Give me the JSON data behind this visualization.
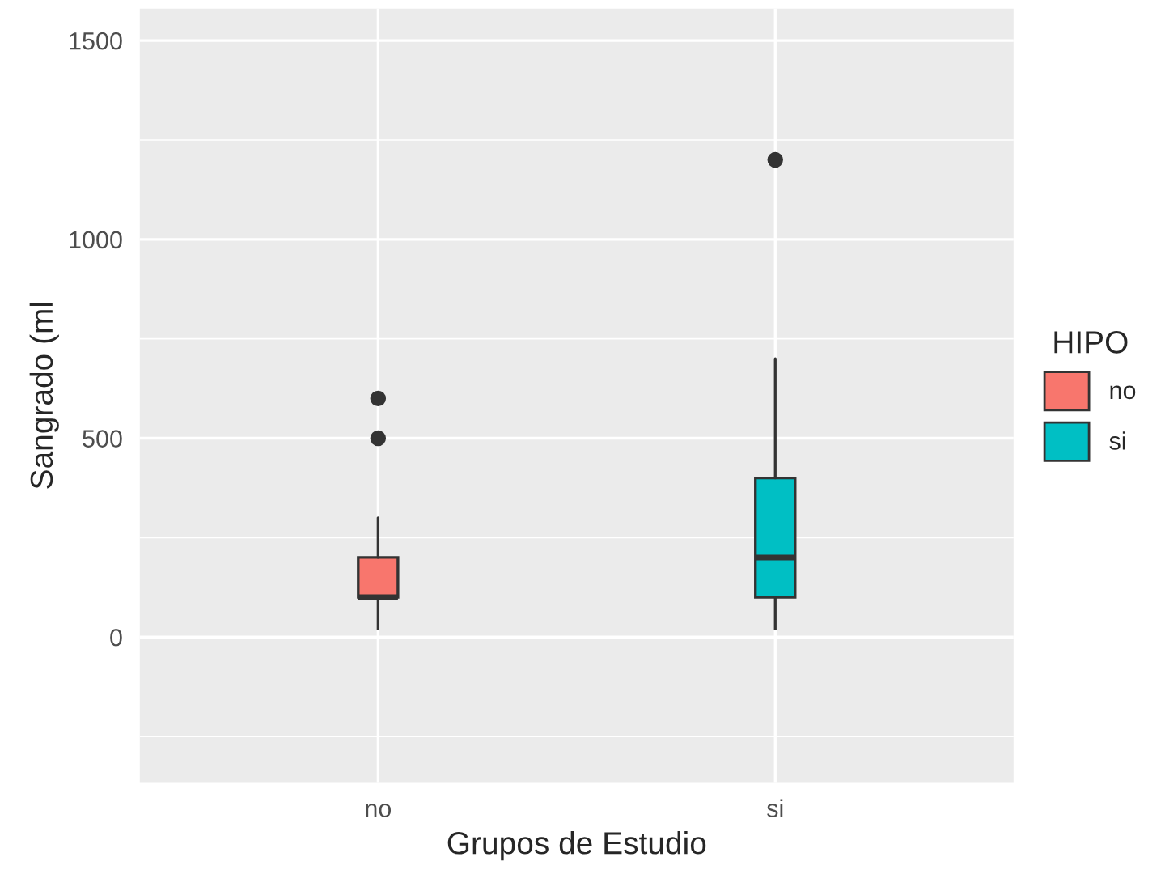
{
  "chart_data": {
    "type": "box",
    "xlabel": "Grupos de Estudio",
    "ylabel": "Sangrado (ml",
    "legend_title": "HIPO",
    "categories": [
      "no",
      "si"
    ],
    "series": [
      {
        "name": "no",
        "color": "#f8766d",
        "boxes": [
          {
            "low": 20,
            "q1": 100,
            "median": 100,
            "q3": 200,
            "high": 300,
            "outliers": [
              500,
              600
            ]
          },
          null
        ]
      },
      {
        "name": "si",
        "color": "#00bfc4",
        "boxes": [
          null,
          {
            "low": 20,
            "q1": 100,
            "median": 200,
            "q3": 400,
            "high": 700,
            "outliers": [
              1200
            ]
          }
        ]
      }
    ],
    "ylim": [
      -365,
      1580
    ],
    "yticks": [
      0,
      500,
      1000,
      1500
    ],
    "grid": true,
    "legend": "right"
  }
}
